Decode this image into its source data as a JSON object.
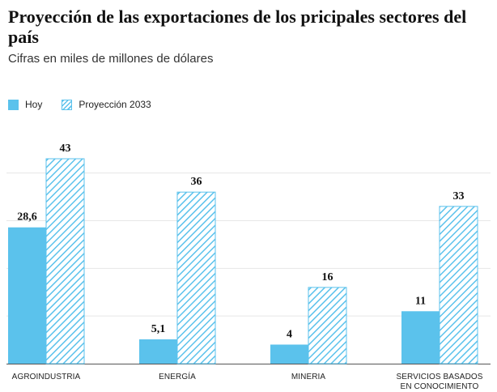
{
  "chart_data": {
    "type": "bar",
    "title": "Proyección de las exportaciones de los pricipales sectores del país",
    "subtitle": "Cifras en miles de millones de dólares",
    "categories": [
      "AGROINDUSTRIA",
      "ENERGÍA",
      "MINERIA",
      "SERVICIOS BASADOS EN CONOCIMIENTO"
    ],
    "category_lines": [
      [
        "AGROINDUSTRIA"
      ],
      [
        "ENERGÍA"
      ],
      [
        "MINERIA"
      ],
      [
        "SERVICIOS BASADOS",
        "EN CONOCIMIENTO"
      ]
    ],
    "series": [
      {
        "name": "Hoy",
        "values": [
          28.6,
          5.1,
          4,
          11
        ],
        "labels": [
          "28,6",
          "5,1",
          "4",
          "11"
        ],
        "style": "solid"
      },
      {
        "name": "Proyección 2033",
        "values": [
          43,
          36,
          16,
          33
        ],
        "labels": [
          "43",
          "36",
          "16",
          "33"
        ],
        "style": "hatched"
      }
    ],
    "ylim": [
      0,
      43
    ],
    "legend_position": "top-left",
    "grid": true
  },
  "colors": {
    "accent": "#5bc2ec",
    "grid": "#e6e6e6",
    "axis": "#555555"
  }
}
